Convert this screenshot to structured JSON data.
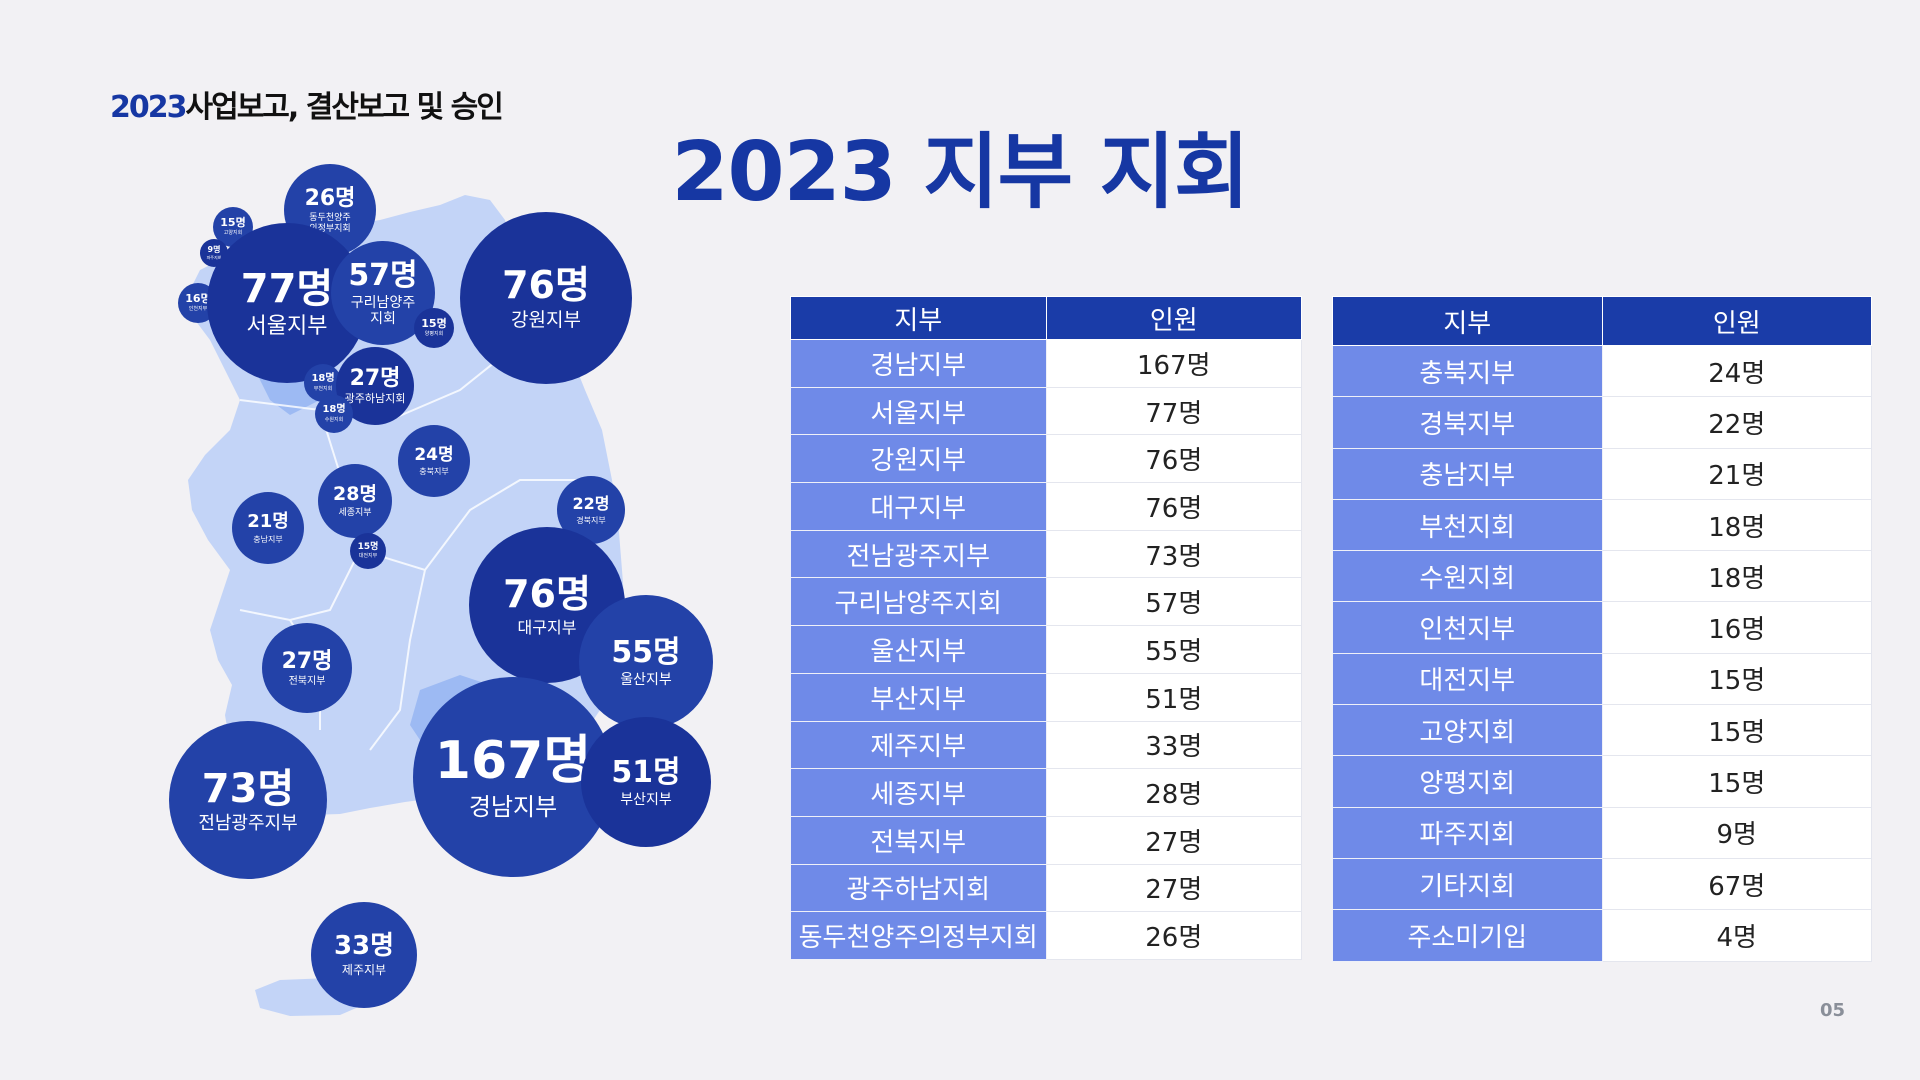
{
  "header": {
    "year": "2023",
    "subtitle": "사업보고, 결산보고 및 승인"
  },
  "title": "2023 지부 지회",
  "page_number": "05",
  "colors": {
    "accent": "#1637a3",
    "bubble_dark": "#1a3399",
    "bubble_mid": "#2342a8",
    "table_header": "#1a3ca8",
    "table_name_cell": "#6f8ae8",
    "map_light": "#c3d4f7"
  },
  "map_bubbles": [
    {
      "count": "26명",
      "label": "동두천양주\n의정부지회"
    },
    {
      "count": "15명",
      "label": "고양지회"
    },
    {
      "count": "9명",
      "label": "파주지회"
    },
    {
      "count": "16명",
      "label": "인천지부"
    },
    {
      "count": "77명",
      "label": "서울지부"
    },
    {
      "count": "57명",
      "label": "구리남양주\n지회"
    },
    {
      "count": "15명",
      "label": "양평지회"
    },
    {
      "count": "76명",
      "label": "강원지부"
    },
    {
      "count": "18명",
      "label": "부천지회"
    },
    {
      "count": "27명",
      "label": "광주하남지회"
    },
    {
      "count": "18명",
      "label": "수원지회"
    },
    {
      "count": "24명",
      "label": "충북지부"
    },
    {
      "count": "28명",
      "label": "세종지부"
    },
    {
      "count": "15명",
      "label": "대전지부"
    },
    {
      "count": "21명",
      "label": "충남지부"
    },
    {
      "count": "22명",
      "label": "경북지부"
    },
    {
      "count": "76명",
      "label": "대구지부"
    },
    {
      "count": "55명",
      "label": "울산지부"
    },
    {
      "count": "27명",
      "label": "전북지부"
    },
    {
      "count": "167명",
      "label": "경남지부"
    },
    {
      "count": "51명",
      "label": "부산지부"
    },
    {
      "count": "73명",
      "label": "전남광주지부"
    },
    {
      "count": "33명",
      "label": "제주지부"
    }
  ],
  "table_left": {
    "headers": [
      "지부",
      "인원"
    ],
    "rows": [
      [
        "경남지부",
        "167명"
      ],
      [
        "서울지부",
        "77명"
      ],
      [
        "강원지부",
        "76명"
      ],
      [
        "대구지부",
        "76명"
      ],
      [
        "전남광주지부",
        "73명"
      ],
      [
        "구리남양주지회",
        "57명"
      ],
      [
        "울산지부",
        "55명"
      ],
      [
        "부산지부",
        "51명"
      ],
      [
        "제주지부",
        "33명"
      ],
      [
        "세종지부",
        "28명"
      ],
      [
        "전북지부",
        "27명"
      ],
      [
        "광주하남지회",
        "27명"
      ],
      [
        "동두천양주의정부지회",
        "26명"
      ]
    ]
  },
  "table_right": {
    "headers": [
      "지부",
      "인원"
    ],
    "rows": [
      [
        "충북지부",
        "24명"
      ],
      [
        "경북지부",
        "22명"
      ],
      [
        "충남지부",
        "21명"
      ],
      [
        "부천지회",
        "18명"
      ],
      [
        "수원지회",
        "18명"
      ],
      [
        "인천지부",
        "16명"
      ],
      [
        "대전지부",
        "15명"
      ],
      [
        "고양지회",
        "15명"
      ],
      [
        "양평지회",
        "15명"
      ],
      [
        "파주지회",
        "9명"
      ],
      [
        "기타지회",
        "67명"
      ],
      [
        "주소미기입",
        "4명"
      ]
    ]
  }
}
